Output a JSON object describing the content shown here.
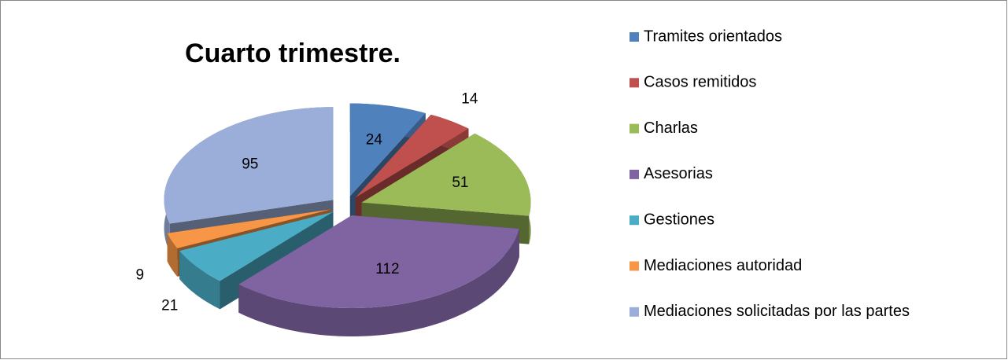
{
  "chart_data": {
    "type": "pie3d",
    "title": "Cuarto trimestre.",
    "categories": [
      "Tramites orientados",
      "Casos remitidos",
      "Charlas",
      "Asesorias",
      "Gestiones",
      "Mediaciones autoridad",
      "Mediaciones solicitadas por las partes"
    ],
    "values": [
      24,
      14,
      51,
      112,
      21,
      9,
      95
    ],
    "colors": [
      "#4f81bd",
      "#c0504d",
      "#9bbb59",
      "#8064a2",
      "#4bacc6",
      "#f79646",
      "#9aaed9"
    ],
    "legend": "right"
  }
}
